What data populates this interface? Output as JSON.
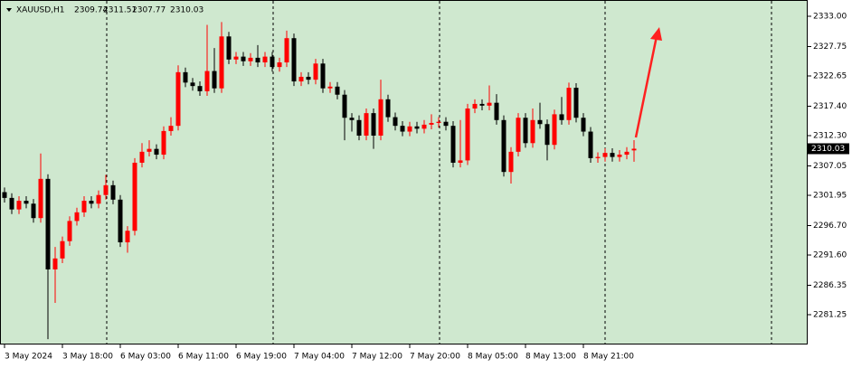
{
  "chart_data": {
    "type": "candlestick",
    "symbol": "XAUUSD,H1",
    "up_color": "#ff0000",
    "down_color": "#000000",
    "open": [
      2302.5,
      2301.5,
      2299.5,
      2301.0,
      2300.5,
      2298.0,
      2304.8,
      2289.1,
      2291.0,
      2294.0,
      2297.5,
      2299.0,
      2301.0,
      2300.5,
      2302.0,
      2303.7,
      2301.2,
      2293.8,
      2295.8,
      2307.6,
      2309.5,
      2310.0,
      2309.0,
      2313.1,
      2314.0,
      2323.3,
      2321.5,
      2320.9,
      2320.0,
      2323.5,
      2320.5,
      2329.5,
      2325.5,
      2326.0,
      2325.2,
      2325.8,
      2325.0,
      2326.0,
      2324.2,
      2325.0,
      2329.2,
      2321.7,
      2322.5,
      2322.0,
      2324.8,
      2320.5,
      2320.8,
      2319.4,
      2315.4,
      2315.0,
      2312.3,
      2316.2,
      2312.3,
      2318.6,
      2315.5,
      2314.0,
      2313.0,
      2313.9,
      2313.5,
      2314.2,
      2314.5,
      2314.7,
      2314.0,
      2307.6,
      2308.0,
      2317.0,
      2317.8,
      2317.5,
      2318.0,
      2315.0,
      2306.0,
      2309.5,
      2315.4,
      2311.0,
      2315.0,
      2314.3,
      2310.7,
      2316.0,
      2315.0,
      2320.6,
      2315.4,
      2313.0,
      2308.4,
      2308.6,
      2309.3,
      2308.6,
      2309.0,
      2309.74
    ],
    "high": [
      2303.3,
      2302.3,
      2301.8,
      2301.8,
      2301.3,
      2309.2,
      2305.6,
      2293.0,
      2294.8,
      2298.3,
      2299.8,
      2301.8,
      2301.8,
      2302.8,
      2305.5,
      2304.5,
      2302.0,
      2296.6,
      2308.4,
      2311.0,
      2311.5,
      2310.8,
      2313.9,
      2315.5,
      2324.5,
      2324.1,
      2322.3,
      2321.7,
      2331.5,
      2327.5,
      2332.0,
      2330.3,
      2326.8,
      2326.8,
      2326.6,
      2328.0,
      2326.8,
      2326.8,
      2325.8,
      2330.5,
      2330.0,
      2323.3,
      2323.3,
      2325.6,
      2325.6,
      2321.6,
      2321.6,
      2320.2,
      2316.2,
      2315.8,
      2317.0,
      2317.0,
      2322.0,
      2319.4,
      2316.3,
      2314.8,
      2314.7,
      2314.7,
      2315.0,
      2316.0,
      2315.5,
      2315.5,
      2314.8,
      2315.0,
      2317.8,
      2318.6,
      2318.6,
      2321.0,
      2319.5,
      2315.8,
      2310.3,
      2316.2,
      2316.2,
      2317.0,
      2318.0,
      2315.1,
      2316.8,
      2319.0,
      2321.5,
      2321.4,
      2316.2,
      2313.8,
      2309.4,
      2310.1,
      2310.1,
      2309.8,
      2310.3,
      2311.51
    ],
    "low": [
      2300.7,
      2298.7,
      2298.7,
      2299.7,
      2297.2,
      2297.2,
      2277.0,
      2283.3,
      2290.2,
      2293.2,
      2296.7,
      2298.2,
      2299.7,
      2299.7,
      2301.2,
      2300.4,
      2293.0,
      2292.0,
      2295.0,
      2306.8,
      2308.7,
      2308.2,
      2308.2,
      2312.3,
      2313.2,
      2320.7,
      2320.1,
      2319.2,
      2319.2,
      2319.7,
      2319.7,
      2324.7,
      2324.7,
      2324.4,
      2324.4,
      2324.2,
      2324.2,
      2323.4,
      2323.4,
      2324.2,
      2320.9,
      2320.9,
      2321.2,
      2321.2,
      2319.7,
      2319.7,
      2318.6,
      2311.5,
      2313.0,
      2311.5,
      2311.5,
      2310.0,
      2311.5,
      2314.7,
      2313.2,
      2312.2,
      2312.2,
      2312.7,
      2312.7,
      2313.4,
      2313.7,
      2313.2,
      2306.8,
      2306.8,
      2307.2,
      2316.2,
      2316.7,
      2316.7,
      2314.2,
      2305.2,
      2304.0,
      2308.7,
      2310.2,
      2310.2,
      2313.5,
      2308.0,
      2309.9,
      2314.2,
      2314.2,
      2314.6,
      2312.2,
      2307.6,
      2307.6,
      2307.8,
      2307.8,
      2307.8,
      2308.2,
      2307.77
    ],
    "close": [
      2301.5,
      2299.5,
      2301.0,
      2300.5,
      2298.0,
      2304.8,
      2289.1,
      2291.0,
      2294.0,
      2297.5,
      2299.0,
      2301.0,
      2300.5,
      2302.0,
      2303.7,
      2301.2,
      2293.8,
      2295.8,
      2307.6,
      2309.5,
      2310.0,
      2309.0,
      2313.1,
      2314.0,
      2323.3,
      2321.5,
      2320.9,
      2320.0,
      2323.5,
      2320.5,
      2329.5,
      2325.5,
      2326.0,
      2325.2,
      2325.8,
      2325.0,
      2326.0,
      2324.2,
      2325.0,
      2329.2,
      2321.7,
      2322.5,
      2322.0,
      2324.8,
      2320.5,
      2320.8,
      2319.4,
      2315.4,
      2315.0,
      2312.3,
      2316.2,
      2312.3,
      2318.6,
      2315.5,
      2314.0,
      2313.0,
      2313.9,
      2313.5,
      2314.2,
      2314.5,
      2314.7,
      2314.0,
      2307.6,
      2308.0,
      2317.0,
      2317.8,
      2317.5,
      2318.0,
      2315.0,
      2306.0,
      2309.5,
      2315.4,
      2311.0,
      2315.0,
      2314.3,
      2310.7,
      2316.0,
      2315.0,
      2320.6,
      2315.4,
      2313.0,
      2308.4,
      2308.6,
      2309.3,
      2308.6,
      2309.0,
      2309.5,
      2310.03
    ],
    "xticks": [
      {
        "value": 0,
        "label": "3 May 2024"
      },
      {
        "value": 8,
        "label": "3 May 18:00"
      },
      {
        "value": 16,
        "label": "6 May 03:00"
      },
      {
        "value": 24,
        "label": "6 May 11:00"
      },
      {
        "value": 32,
        "label": "6 May 19:00"
      },
      {
        "value": 40,
        "label": "7 May 04:00"
      },
      {
        "value": 48,
        "label": "7 May 12:00"
      },
      {
        "value": 56,
        "label": "7 May 20:00"
      },
      {
        "value": 64,
        "label": "8 May 05:00"
      },
      {
        "value": 72,
        "label": "8 May 13:00"
      },
      {
        "value": 80,
        "label": "8 May 21:00"
      }
    ],
    "ylim": [
      2274.67,
      2335.82
    ],
    "yticks": [
      {
        "value": 2333.0,
        "label": "2333.00"
      },
      {
        "value": 2327.75,
        "label": "2327.75"
      },
      {
        "value": 2322.65,
        "label": "2322.65"
      },
      {
        "value": 2317.4,
        "label": "2317.40"
      },
      {
        "value": 2312.3,
        "label": "2312.30"
      },
      {
        "value": 2307.05,
        "label": "2307.05"
      },
      {
        "value": 2301.95,
        "label": "2301.95"
      },
      {
        "value": 2296.7,
        "label": "2296.70"
      },
      {
        "value": 2291.6,
        "label": "2291.60"
      },
      {
        "value": 2286.35,
        "label": "2286.35"
      },
      {
        "value": 2281.25,
        "label": "2281.25"
      }
    ]
  }
}
